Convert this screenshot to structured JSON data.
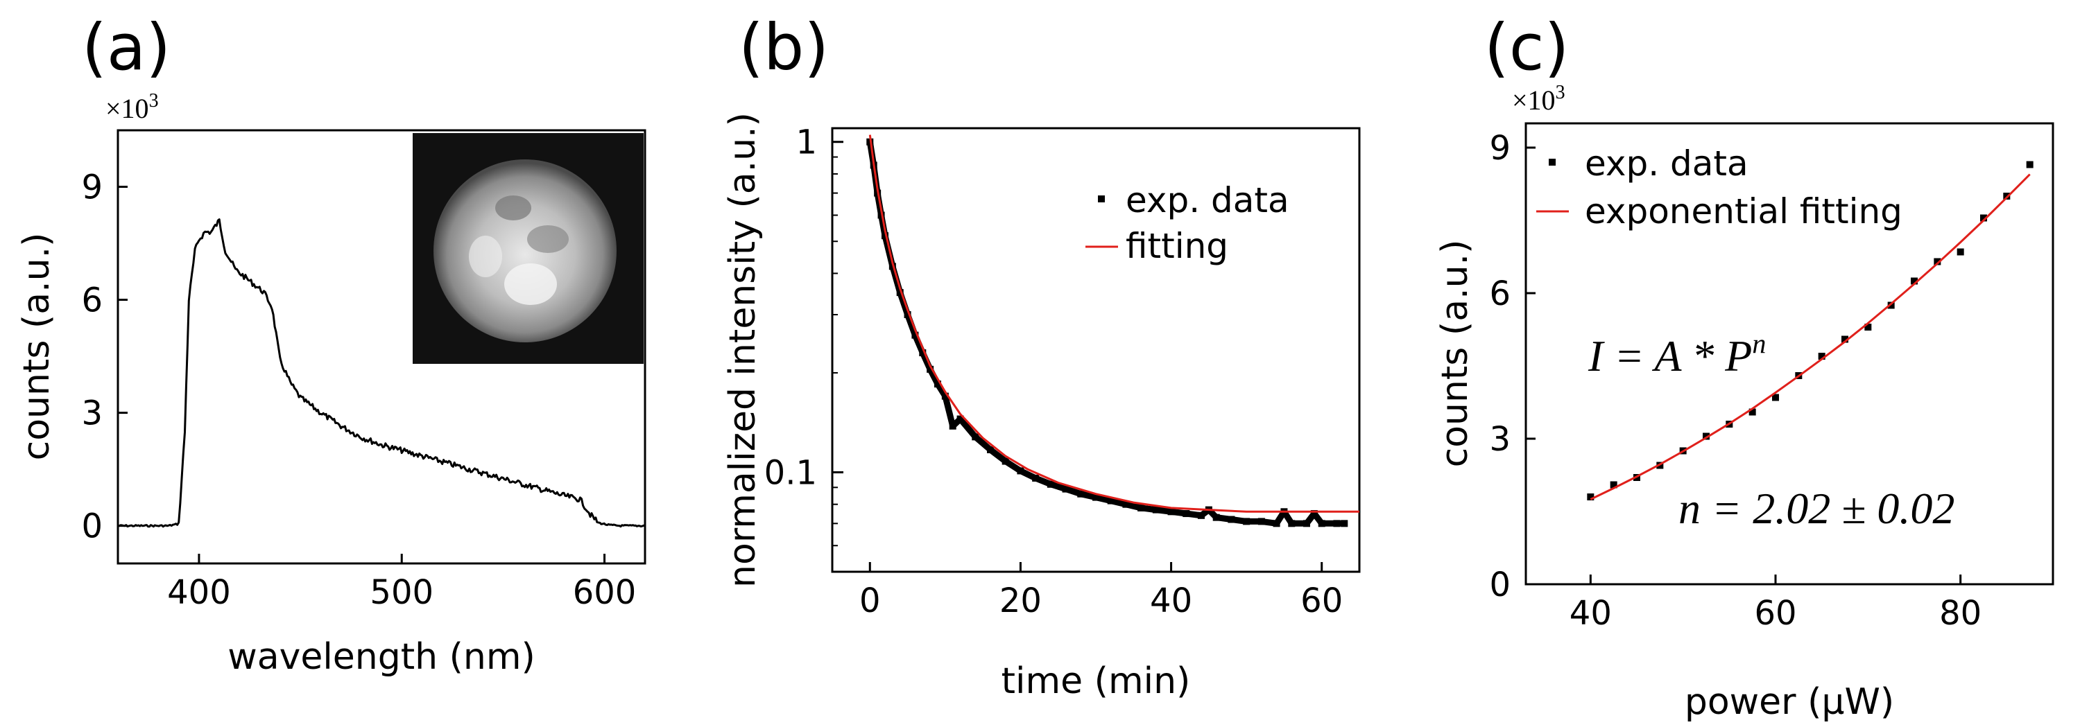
{
  "chart_data": [
    {
      "panel": "(a)",
      "type": "line",
      "xlabel": "wavelength (nm)",
      "ylabel": "counts (a.u.)",
      "multiplier": "×10",
      "multiplier_exp": "3",
      "xlim": [
        360,
        620
      ],
      "ylim": [
        -1,
        10.5
      ],
      "xticks": [
        400,
        500,
        600
      ],
      "yticks": [
        0,
        3,
        6,
        9
      ],
      "inset": "grayscale image of a bright circular particle",
      "series": [
        {
          "name": "spectrum",
          "color": "#000000",
          "x": [
            360,
            385,
            390,
            393,
            395,
            398,
            400,
            403,
            406,
            410,
            413,
            418,
            425,
            432,
            436,
            440,
            445,
            450,
            460,
            470,
            480,
            490,
            500,
            510,
            520,
            530,
            540,
            550,
            560,
            570,
            580,
            588,
            593,
            597,
            602,
            608,
            620
          ],
          "y": [
            0,
            0,
            0.05,
            2.5,
            6.0,
            7.3,
            7.6,
            7.8,
            7.8,
            8.1,
            7.3,
            6.8,
            6.5,
            6.2,
            5.8,
            4.4,
            3.8,
            3.4,
            3.0,
            2.65,
            2.35,
            2.15,
            2.0,
            1.85,
            1.7,
            1.55,
            1.4,
            1.25,
            1.1,
            0.95,
            0.8,
            0.7,
            0.3,
            0.08,
            0.02,
            0,
            0
          ]
        }
      ]
    },
    {
      "panel": "(b)",
      "type": "scatter",
      "xlabel": "time (min)",
      "ylabel": "normalized intensity (a.u.)",
      "yscale": "log",
      "xlim": [
        -5,
        65
      ],
      "ylim": [
        0.05,
        1.1
      ],
      "xticks": [
        0,
        20,
        40,
        60
      ],
      "ytick_labels": [
        {
          "value": 1,
          "label": "1"
        },
        {
          "value": 0.1,
          "label": "0.1"
        }
      ],
      "yminor": [
        0.05,
        0.06,
        0.07,
        0.08,
        0.09,
        0.2,
        0.3,
        0.4,
        0.5,
        0.6,
        0.7,
        0.8,
        0.9
      ],
      "legend": [
        {
          "label": "exp. data",
          "marker": "square"
        },
        {
          "label": "fitting",
          "marker": "line"
        }
      ],
      "series": [
        {
          "name": "exp. data",
          "color": "#000000",
          "x": [
            0,
            0.5,
            1,
            1.5,
            2,
            3,
            4,
            5,
            6,
            7,
            8,
            9,
            10,
            11,
            12,
            14,
            16,
            18,
            20,
            22,
            24,
            26,
            28,
            30,
            32,
            34,
            36,
            38,
            40,
            42,
            44,
            45,
            46,
            48,
            50,
            52,
            54,
            55,
            56,
            58,
            59,
            60,
            62,
            63
          ],
          "y": [
            1.0,
            0.85,
            0.7,
            0.6,
            0.52,
            0.42,
            0.35,
            0.3,
            0.26,
            0.23,
            0.205,
            0.185,
            0.17,
            0.138,
            0.145,
            0.128,
            0.117,
            0.108,
            0.101,
            0.096,
            0.092,
            0.089,
            0.086,
            0.084,
            0.082,
            0.08,
            0.078,
            0.077,
            0.076,
            0.075,
            0.074,
            0.077,
            0.073,
            0.072,
            0.071,
            0.071,
            0.07,
            0.076,
            0.07,
            0.07,
            0.075,
            0.07,
            0.07,
            0.07
          ]
        },
        {
          "name": "fitting",
          "color": "#e0201b",
          "x": [
            0,
            0.5,
            1,
            2,
            3,
            4,
            5,
            6,
            8,
            10,
            12,
            15,
            18,
            21,
            25,
            30,
            35,
            40,
            45,
            50,
            55,
            60,
            65
          ],
          "y": [
            1.05,
            0.86,
            0.72,
            0.54,
            0.43,
            0.36,
            0.31,
            0.27,
            0.21,
            0.175,
            0.15,
            0.127,
            0.112,
            0.102,
            0.093,
            0.086,
            0.081,
            0.078,
            0.077,
            0.076,
            0.076,
            0.076,
            0.076
          ]
        }
      ]
    },
    {
      "panel": "(c)",
      "type": "scatter",
      "xlabel": "power (μW)",
      "ylabel": "counts (a.u.)",
      "multiplier": "×10",
      "multiplier_exp": "3",
      "xlim": [
        33,
        90
      ],
      "ylim": [
        0,
        9.5
      ],
      "xticks": [
        40,
        60,
        80
      ],
      "yticks": [
        0,
        3,
        6,
        9
      ],
      "legend": [
        {
          "label": "exp. data",
          "marker": "square"
        },
        {
          "label": "exponential fitting",
          "marker": "line"
        }
      ],
      "annotations": [
        {
          "text": "I = A * P",
          "superscript": "n"
        },
        {
          "text": "n = 2.02 ± 0.02"
        }
      ],
      "series": [
        {
          "name": "exp. data",
          "color": "#000000",
          "x": [
            40,
            42.5,
            45,
            47.5,
            50,
            52.5,
            55,
            57.5,
            60,
            62.5,
            65,
            67.5,
            70,
            72.5,
            75,
            77.5,
            80,
            82.5,
            85,
            87.5
          ],
          "y": [
            1.8,
            2.05,
            2.2,
            2.45,
            2.75,
            3.05,
            3.3,
            3.55,
            3.85,
            4.3,
            4.7,
            5.05,
            5.3,
            5.75,
            6.25,
            6.65,
            6.85,
            7.55,
            8.0,
            8.65
          ]
        },
        {
          "name": "exponential fitting",
          "color": "#e0201b",
          "x": [
            40,
            42.5,
            45,
            47.5,
            50,
            52.5,
            55,
            57.5,
            60,
            62.5,
            65,
            67.5,
            70,
            72.5,
            75,
            77.5,
            80,
            82.5,
            85,
            87.5
          ],
          "y": [
            1.75,
            1.98,
            2.22,
            2.47,
            2.74,
            3.02,
            3.31,
            3.62,
            3.95,
            4.29,
            4.64,
            5.0,
            5.38,
            5.78,
            6.19,
            6.61,
            7.05,
            7.5,
            7.97,
            8.45
          ]
        }
      ]
    }
  ]
}
